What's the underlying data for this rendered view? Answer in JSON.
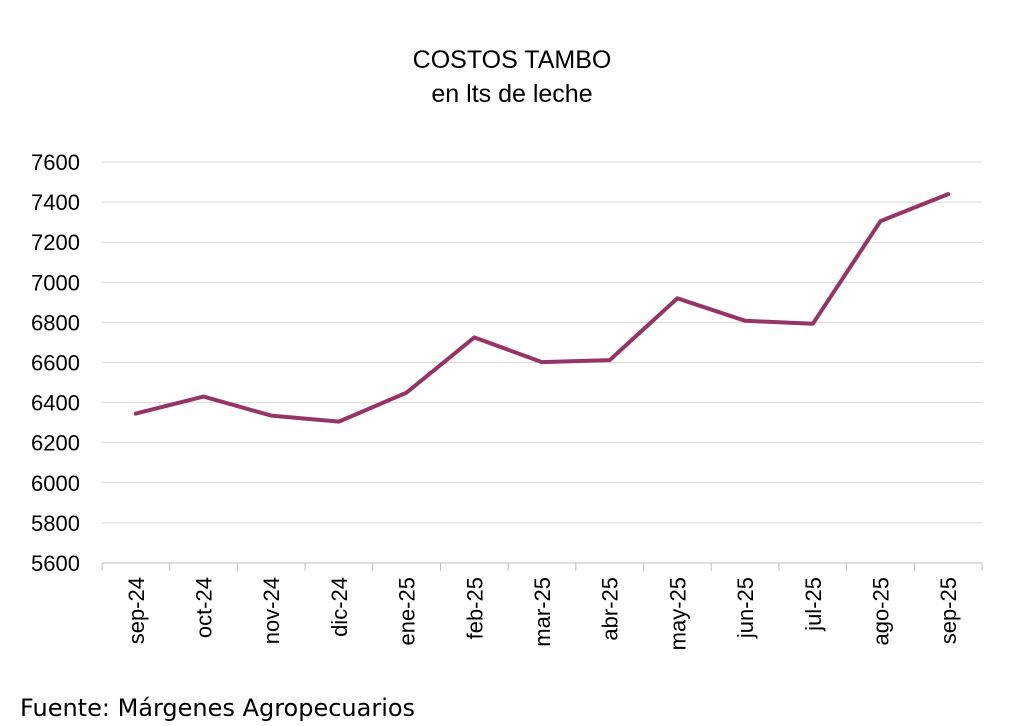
{
  "chart_data": {
    "type": "line",
    "title": "COSTOS TAMBO",
    "subtitle": "en lts de leche",
    "categories": [
      "sep-24",
      "oct-24",
      "nov-24",
      "dic-24",
      "ene-25",
      "feb-25",
      "mar-25",
      "abr-25",
      "may-25",
      "jun-25",
      "jul-25",
      "ago-25",
      "sep-25"
    ],
    "series": [
      {
        "values": [
          6345,
          6430,
          6335,
          6305,
          6450,
          6725,
          6602,
          6612,
          6920,
          6808,
          6793,
          7305,
          7440
        ]
      }
    ],
    "ylim": [
      5600,
      7600
    ],
    "yticks": [
      5600,
      5800,
      6000,
      6200,
      6400,
      6600,
      6800,
      7000,
      7200,
      7400,
      7600
    ],
    "grid": true,
    "legend": "none",
    "line_color": "#943467",
    "grid_color": "#d9d9d9"
  },
  "source": "Fuente: Márgenes Agropecuarios"
}
